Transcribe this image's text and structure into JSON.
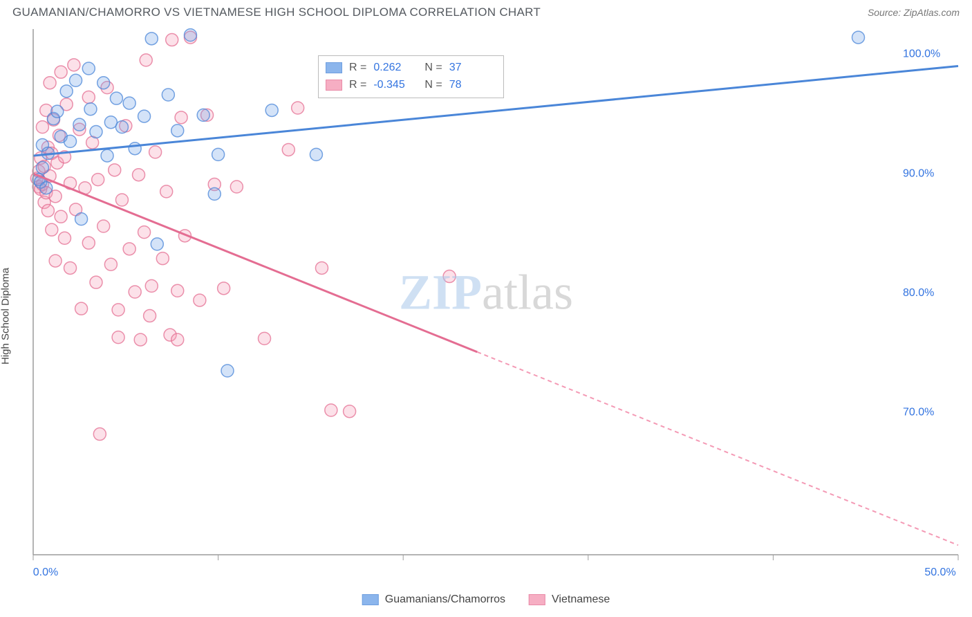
{
  "title": "GUAMANIAN/CHAMORRO VS VIETNAMESE HIGH SCHOOL DIPLOMA CORRELATION CHART",
  "source": "Source: ZipAtlas.com",
  "ylabel": "High School Diploma",
  "watermark_a": "ZIP",
  "watermark_b": "atlas",
  "chart": {
    "type": "scatter",
    "xlim": [
      0,
      50
    ],
    "ylim": [
      58,
      102
    ],
    "xticks": [
      0,
      10,
      20,
      30,
      40,
      50
    ],
    "xtick_labels": [
      "0.0%",
      "",
      "",
      "",
      "",
      "50.0%"
    ],
    "yticks": [
      70,
      80,
      90,
      100
    ],
    "ytick_labels": [
      "70.0%",
      "80.0%",
      "90.0%",
      "100.0%"
    ],
    "grid_color": "#d0d0d0",
    "axis_color": "#9c9c9c",
    "background_color": "#ffffff",
    "marker_radius": 9,
    "series": [
      {
        "name": "Guamanians/Chamorros",
        "color_fill": "#6fa3e8",
        "color_stroke": "#4a86d8",
        "R": "0.262",
        "N": "37",
        "trend": {
          "x1": 0,
          "y1": 91.4,
          "x2": 50,
          "y2": 98.9,
          "dash_from_x": null
        },
        "points": [
          [
            0.3,
            89.4
          ],
          [
            0.4,
            89.2
          ],
          [
            0.5,
            90.4
          ],
          [
            0.5,
            92.3
          ],
          [
            0.7,
            88.7
          ],
          [
            0.8,
            91.6
          ],
          [
            1.1,
            94.5
          ],
          [
            1.3,
            95.1
          ],
          [
            1.5,
            93.0
          ],
          [
            1.8,
            96.8
          ],
          [
            2.0,
            92.6
          ],
          [
            2.3,
            97.7
          ],
          [
            2.5,
            94.0
          ],
          [
            2.6,
            86.1
          ],
          [
            3.0,
            98.7
          ],
          [
            3.1,
            95.3
          ],
          [
            3.4,
            93.4
          ],
          [
            3.8,
            97.5
          ],
          [
            4.0,
            91.4
          ],
          [
            4.2,
            94.2
          ],
          [
            4.5,
            96.2
          ],
          [
            4.8,
            93.8
          ],
          [
            5.2,
            95.8
          ],
          [
            5.5,
            92.0
          ],
          [
            6.0,
            94.7
          ],
          [
            6.4,
            101.2
          ],
          [
            6.7,
            84.0
          ],
          [
            7.3,
            96.5
          ],
          [
            7.8,
            93.5
          ],
          [
            8.5,
            101.5
          ],
          [
            9.2,
            94.8
          ],
          [
            9.8,
            88.2
          ],
          [
            10.0,
            91.5
          ],
          [
            10.5,
            73.4
          ],
          [
            12.9,
            95.2
          ],
          [
            15.3,
            91.5
          ],
          [
            44.6,
            101.3
          ]
        ]
      },
      {
        "name": "Vietnamese",
        "color_fill": "#f49ab5",
        "color_stroke": "#e46d92",
        "R": "-0.345",
        "N": "78",
        "trend": {
          "x1": 0,
          "y1": 89.9,
          "x2": 50,
          "y2": 58.8,
          "dash_from_x": 24
        },
        "points": [
          [
            0.2,
            89.5
          ],
          [
            0.3,
            88.8
          ],
          [
            0.3,
            90.1
          ],
          [
            0.4,
            88.6
          ],
          [
            0.4,
            91.2
          ],
          [
            0.5,
            89.0
          ],
          [
            0.5,
            93.8
          ],
          [
            0.6,
            87.5
          ],
          [
            0.6,
            90.5
          ],
          [
            0.7,
            95.2
          ],
          [
            0.7,
            88.3
          ],
          [
            0.8,
            86.8
          ],
          [
            0.8,
            92.1
          ],
          [
            0.9,
            97.5
          ],
          [
            0.9,
            89.7
          ],
          [
            1.0,
            85.2
          ],
          [
            1.0,
            91.6
          ],
          [
            1.1,
            94.4
          ],
          [
            1.2,
            88.0
          ],
          [
            1.2,
            82.6
          ],
          [
            1.3,
            90.8
          ],
          [
            1.4,
            93.1
          ],
          [
            1.5,
            86.3
          ],
          [
            1.5,
            98.4
          ],
          [
            1.7,
            84.5
          ],
          [
            1.7,
            91.3
          ],
          [
            1.8,
            95.7
          ],
          [
            2.0,
            89.1
          ],
          [
            2.0,
            82.0
          ],
          [
            2.2,
            99.0
          ],
          [
            2.3,
            86.9
          ],
          [
            2.5,
            93.6
          ],
          [
            2.6,
            78.6
          ],
          [
            2.8,
            88.7
          ],
          [
            3.0,
            96.3
          ],
          [
            3.0,
            84.1
          ],
          [
            3.2,
            92.5
          ],
          [
            3.4,
            80.8
          ],
          [
            3.5,
            89.4
          ],
          [
            3.6,
            68.1
          ],
          [
            3.8,
            85.5
          ],
          [
            4.0,
            97.1
          ],
          [
            4.2,
            82.3
          ],
          [
            4.4,
            90.2
          ],
          [
            4.6,
            76.2
          ],
          [
            4.6,
            78.5
          ],
          [
            4.8,
            87.7
          ],
          [
            5.0,
            93.9
          ],
          [
            5.2,
            83.6
          ],
          [
            5.5,
            80.0
          ],
          [
            5.7,
            89.8
          ],
          [
            5.8,
            76.0
          ],
          [
            6.0,
            85.0
          ],
          [
            6.1,
            99.4
          ],
          [
            6.3,
            78.0
          ],
          [
            6.4,
            80.5
          ],
          [
            6.6,
            91.7
          ],
          [
            7.0,
            82.8
          ],
          [
            7.2,
            88.4
          ],
          [
            7.4,
            76.4
          ],
          [
            7.5,
            101.1
          ],
          [
            7.8,
            80.1
          ],
          [
            7.8,
            76.0
          ],
          [
            8.0,
            94.6
          ],
          [
            8.2,
            84.7
          ],
          [
            8.5,
            101.3
          ],
          [
            9.0,
            79.3
          ],
          [
            9.4,
            94.8
          ],
          [
            9.8,
            89.0
          ],
          [
            10.3,
            80.3
          ],
          [
            11.0,
            88.8
          ],
          [
            12.5,
            76.1
          ],
          [
            13.8,
            91.9
          ],
          [
            14.3,
            95.4
          ],
          [
            15.6,
            82.0
          ],
          [
            16.1,
            70.1
          ],
          [
            17.1,
            70.0
          ],
          [
            22.5,
            81.3
          ]
        ]
      }
    ]
  },
  "legend_top": {
    "stat1_label": "R =",
    "stat2_label": "N ="
  }
}
